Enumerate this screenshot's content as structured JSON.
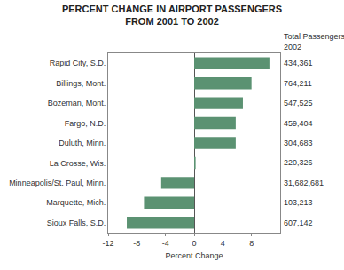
{
  "chart_data": {
    "type": "bar",
    "orientation": "horizontal",
    "title": "PERCENT CHANGE IN AIRPORT PASSENGERS\nFROM 2001 TO 2002",
    "x_label": "Percent Change",
    "categories": [
      "Rapid City, S.D.",
      "Billings, Mont.",
      "Bozeman, Mont.",
      "Fargo, N.D.",
      "Duluth, Minn.",
      "La Crosse, Wis.",
      "Minneapolis/St. Paul, Minn.",
      "Marquette, Mich.",
      "Sioux Falls, S.D."
    ],
    "values": [
      10.5,
      8.0,
      6.8,
      5.8,
      5.8,
      0.2,
      -4.6,
      -7.0,
      -9.4
    ],
    "color": "#5b9272",
    "xlim": [
      -12,
      12
    ],
    "xticks": [
      -12,
      -8,
      -4,
      0,
      4,
      8
    ],
    "grid": false,
    "annotations": [
      {
        "title": "Total Passengers\n2002",
        "labels": [
          "434,361",
          "764,211",
          "547,525",
          "459,404",
          "304,683",
          "220,326",
          "31,682,681",
          "103,213",
          "607,142"
        ]
      }
    ]
  }
}
